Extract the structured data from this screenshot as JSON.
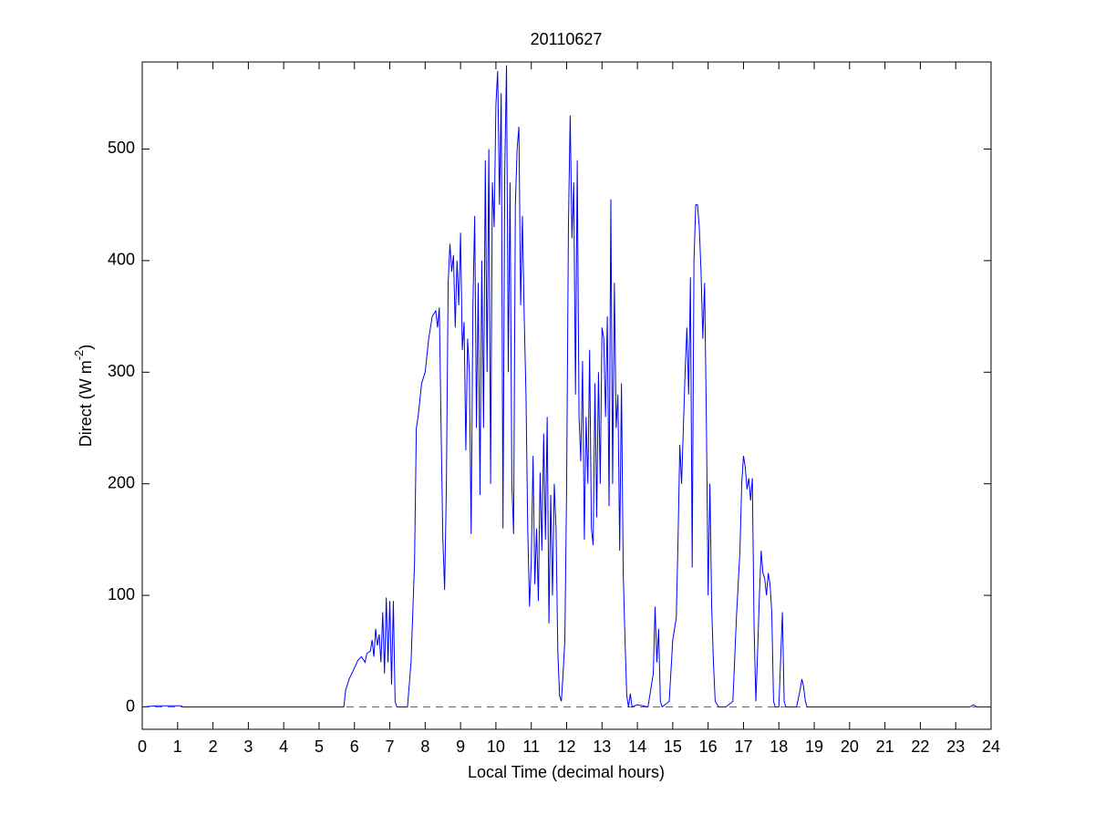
{
  "chart_data": {
    "type": "line",
    "title": "20110627",
    "xlabel": "Local Time (decimal hours)",
    "ylabel": [
      "Direct (W m",
      "-2",
      ")"
    ],
    "xlim": [
      0,
      24
    ],
    "ylim": [
      -20,
      578
    ],
    "xticks": [
      0,
      1,
      2,
      3,
      4,
      5,
      6,
      7,
      8,
      9,
      10,
      11,
      12,
      13,
      14,
      15,
      16,
      17,
      18,
      19,
      20,
      21,
      22,
      23,
      24
    ],
    "yticks": [
      0,
      100,
      200,
      300,
      400,
      500
    ],
    "hlines": [
      {
        "value": 0,
        "color": "#e03030",
        "dashed": true
      }
    ],
    "series": [
      {
        "color": "#0000ff",
        "x": [
          0,
          0.4,
          1.1,
          1.15,
          5.7,
          5.75,
          5.85,
          6.0,
          6.1,
          6.2,
          6.3,
          6.35,
          6.45,
          6.5,
          6.55,
          6.6,
          6.65,
          6.7,
          6.75,
          6.8,
          6.85,
          6.9,
          6.95,
          7.0,
          7.05,
          7.1,
          7.15,
          7.2,
          7.5,
          7.6,
          7.7,
          7.75,
          7.8,
          7.9,
          8.0,
          8.1,
          8.2,
          8.3,
          8.35,
          8.4,
          8.45,
          8.5,
          8.55,
          8.6,
          8.65,
          8.7,
          8.75,
          8.8,
          8.85,
          8.9,
          8.95,
          9.0,
          9.05,
          9.1,
          9.15,
          9.2,
          9.25,
          9.3,
          9.35,
          9.4,
          9.45,
          9.5,
          9.55,
          9.6,
          9.65,
          9.7,
          9.75,
          9.8,
          9.85,
          9.9,
          9.95,
          10.0,
          10.05,
          10.1,
          10.15,
          10.2,
          10.25,
          10.3,
          10.35,
          10.4,
          10.45,
          10.5,
          10.55,
          10.6,
          10.65,
          10.7,
          10.75,
          10.8,
          10.85,
          10.9,
          10.95,
          11.0,
          11.05,
          11.1,
          11.15,
          11.2,
          11.25,
          11.3,
          11.35,
          11.4,
          11.45,
          11.5,
          11.55,
          11.6,
          11.65,
          11.7,
          11.75,
          11.8,
          11.85,
          11.9,
          11.95,
          12.0,
          12.05,
          12.1,
          12.15,
          12.2,
          12.25,
          12.3,
          12.35,
          12.4,
          12.45,
          12.5,
          12.55,
          12.6,
          12.65,
          12.7,
          12.75,
          12.8,
          12.85,
          12.9,
          12.95,
          13.0,
          13.05,
          13.1,
          13.15,
          13.2,
          13.25,
          13.3,
          13.35,
          13.4,
          13.45,
          13.5,
          13.55,
          13.6,
          13.65,
          13.7,
          13.75,
          13.8,
          13.85,
          14.0,
          14.3,
          14.45,
          14.5,
          14.55,
          14.6,
          14.65,
          14.7,
          14.9,
          15.0,
          15.1,
          15.15,
          15.2,
          15.25,
          15.3,
          15.35,
          15.4,
          15.45,
          15.5,
          15.55,
          15.6,
          15.65,
          15.7,
          15.75,
          15.8,
          15.85,
          15.9,
          15.95,
          16.0,
          16.05,
          16.1,
          16.15,
          16.2,
          16.3,
          16.5,
          16.7,
          16.8,
          16.9,
          16.95,
          17.0,
          17.05,
          17.1,
          17.15,
          17.2,
          17.25,
          17.3,
          17.35,
          17.4,
          17.45,
          17.5,
          17.55,
          17.6,
          17.65,
          17.7,
          17.75,
          17.8,
          17.85,
          17.9,
          18.0,
          18.1,
          18.15,
          18.2,
          18.5,
          18.6,
          18.65,
          18.7,
          18.75,
          18.8,
          23.4,
          23.5,
          23.6,
          24
        ],
        "values": [
          0,
          1,
          1,
          0,
          0,
          15,
          25,
          35,
          42,
          45,
          40,
          48,
          50,
          60,
          45,
          70,
          55,
          65,
          40,
          85,
          30,
          98,
          40,
          95,
          20,
          95,
          5,
          0,
          0,
          40,
          130,
          250,
          260,
          290,
          300,
          330,
          350,
          355,
          340,
          358,
          250,
          150,
          105,
          200,
          380,
          415,
          390,
          405,
          340,
          400,
          360,
          425,
          320,
          345,
          230,
          330,
          300,
          155,
          360,
          440,
          250,
          380,
          190,
          400,
          250,
          490,
          300,
          500,
          200,
          470,
          430,
          540,
          570,
          450,
          550,
          160,
          480,
          575,
          300,
          470,
          200,
          155,
          450,
          500,
          520,
          360,
          440,
          350,
          280,
          160,
          90,
          130,
          225,
          110,
          160,
          95,
          210,
          140,
          245,
          150,
          260,
          75,
          190,
          100,
          200,
          160,
          50,
          10,
          5,
          30,
          60,
          200,
          430,
          530,
          420,
          470,
          280,
          490,
          260,
          220,
          310,
          150,
          260,
          200,
          320,
          160,
          145,
          290,
          170,
          300,
          200,
          340,
          330,
          260,
          350,
          180,
          455,
          200,
          380,
          250,
          280,
          140,
          290,
          120,
          60,
          10,
          0,
          12,
          0,
          2,
          0,
          30,
          90,
          40,
          70,
          5,
          0,
          5,
          60,
          80,
          150,
          235,
          200,
          250,
          300,
          340,
          280,
          385,
          125,
          400,
          450,
          450,
          430,
          390,
          330,
          380,
          260,
          100,
          200,
          90,
          40,
          5,
          0,
          0,
          5,
          80,
          140,
          200,
          225,
          215,
          195,
          205,
          185,
          205,
          70,
          5,
          50,
          100,
          140,
          120,
          115,
          100,
          120,
          110,
          85,
          5,
          0,
          0,
          85,
          5,
          0,
          0,
          15,
          25,
          18,
          5,
          0,
          0,
          2,
          0,
          0
        ]
      }
    ]
  }
}
